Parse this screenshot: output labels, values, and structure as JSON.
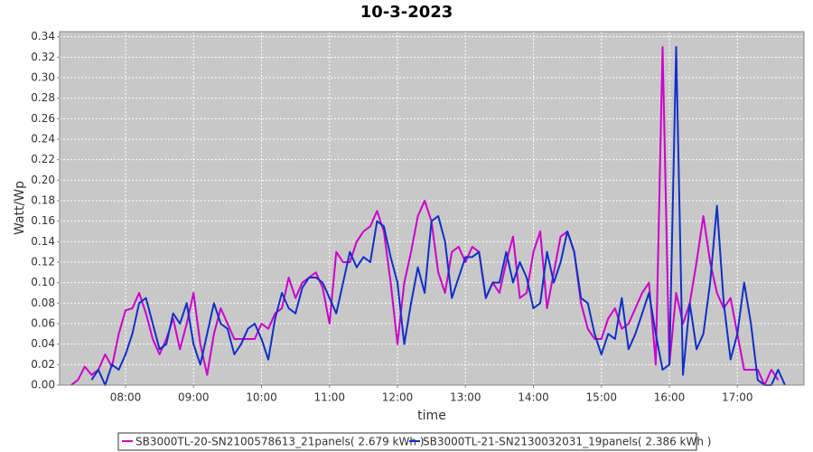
{
  "chart_data": {
    "type": "line",
    "title": "10-3-2023",
    "x_label": "time",
    "y_label": "Watt/Wp",
    "x": [
      7.2,
      7.3,
      7.4,
      7.5,
      7.6,
      7.7,
      7.8,
      7.9,
      8.0,
      8.1,
      8.2,
      8.3,
      8.4,
      8.5,
      8.6,
      8.7,
      8.8,
      8.9,
      9.0,
      9.1,
      9.2,
      9.3,
      9.4,
      9.5,
      9.6,
      9.7,
      9.8,
      9.9,
      10.0,
      10.1,
      10.2,
      10.3,
      10.4,
      10.5,
      10.6,
      10.7,
      10.8,
      10.9,
      11.0,
      11.1,
      11.2,
      11.3,
      11.4,
      11.5,
      11.6,
      11.7,
      11.8,
      11.9,
      12.0,
      12.1,
      12.2,
      12.3,
      12.4,
      12.5,
      12.6,
      12.7,
      12.8,
      12.9,
      13.0,
      13.1,
      13.2,
      13.3,
      13.4,
      13.5,
      13.6,
      13.7,
      13.8,
      13.9,
      14.0,
      14.1,
      14.2,
      14.3,
      14.4,
      14.5,
      14.6,
      14.7,
      14.8,
      14.9,
      15.0,
      15.1,
      15.2,
      15.3,
      15.4,
      15.5,
      15.6,
      15.7,
      15.8,
      15.9,
      16.0,
      16.1,
      16.2,
      16.3,
      16.4,
      16.5,
      16.6,
      16.7,
      16.8,
      16.9,
      17.0,
      17.1,
      17.2,
      17.3,
      17.4,
      17.5,
      17.6,
      17.7,
      17.8
    ],
    "series": [
      {
        "name": "SB3000TL-20-SN2100578613_21panels( 2.679 kWh )",
        "color": "#cc00cc",
        "values": [
          0,
          0.005,
          0.018,
          0.01,
          0.015,
          0.03,
          0.018,
          0.05,
          0.073,
          0.075,
          0.09,
          0.07,
          0.045,
          0.03,
          0.045,
          0.065,
          0.035,
          0.06,
          0.09,
          0.04,
          0.01,
          0.05,
          0.075,
          0.06,
          0.045,
          0.045,
          0.045,
          0.045,
          0.06,
          0.055,
          0.07,
          0.075,
          0.105,
          0.085,
          0.1,
          0.105,
          0.11,
          0.095,
          0.06,
          0.13,
          0.12,
          0.12,
          0.14,
          0.15,
          0.155,
          0.17,
          0.15,
          0.1,
          0.04,
          0.1,
          0.13,
          0.165,
          0.18,
          0.16,
          0.11,
          0.09,
          0.13,
          0.135,
          0.12,
          0.135,
          0.13,
          0.085,
          0.1,
          0.09,
          0.12,
          0.145,
          0.085,
          0.09,
          0.13,
          0.15,
          0.075,
          0.11,
          0.145,
          0.15,
          0.13,
          0.08,
          0.055,
          0.045,
          0.045,
          0.065,
          0.075,
          0.055,
          0.06,
          0.075,
          0.09,
          0.1,
          0.02,
          0.33,
          0.02,
          0.09,
          0.06,
          0.08,
          0.12,
          0.165,
          0.12,
          0.09,
          0.075,
          0.085,
          0.05,
          0.015,
          0.015,
          0.015,
          0,
          0.015,
          0.005,
          null,
          null
        ]
      },
      {
        "name": "SB3000TL-21-SN2130032031_19panels( 2.386 kWh )",
        "color": "#1030c8",
        "values": [
          null,
          null,
          null,
          0.005,
          0.015,
          0,
          0.02,
          0.015,
          0.03,
          0.05,
          0.08,
          0.085,
          0.06,
          0.035,
          0.04,
          0.07,
          0.06,
          0.08,
          0.04,
          0.02,
          0.05,
          0.08,
          0.06,
          0.055,
          0.03,
          0.04,
          0.055,
          0.06,
          0.045,
          0.025,
          0.065,
          0.09,
          0.075,
          0.07,
          0.095,
          0.105,
          0.105,
          0.1,
          0.085,
          0.07,
          0.1,
          0.13,
          0.115,
          0.125,
          0.12,
          0.16,
          0.155,
          0.125,
          0.1,
          0.04,
          0.08,
          0.115,
          0.09,
          0.16,
          0.165,
          0.14,
          0.085,
          0.105,
          0.125,
          0.125,
          0.13,
          0.085,
          0.1,
          0.1,
          0.13,
          0.1,
          0.12,
          0.105,
          0.075,
          0.08,
          0.13,
          0.1,
          0.12,
          0.15,
          0.13,
          0.085,
          0.08,
          0.05,
          0.03,
          0.05,
          0.045,
          0.085,
          0.035,
          0.05,
          0.07,
          0.09,
          0.05,
          0.015,
          0.02,
          0.33,
          0.01,
          0.08,
          0.035,
          0.05,
          0.1,
          0.175,
          0.08,
          0.025,
          0.05,
          0.1,
          0.06,
          0.005,
          0,
          0,
          0.015,
          0,
          null
        ]
      }
    ],
    "xlim": [
      7.03,
      17.98
    ],
    "ylim": [
      0,
      0.345
    ],
    "xticks": [
      {
        "value": 8,
        "label": "08:00"
      },
      {
        "value": 9,
        "label": "09:00"
      },
      {
        "value": 10,
        "label": "10:00"
      },
      {
        "value": 11,
        "label": "11:00"
      },
      {
        "value": 12,
        "label": "12:00"
      },
      {
        "value": 13,
        "label": "13:00"
      },
      {
        "value": 14,
        "label": "14:00"
      },
      {
        "value": 15,
        "label": "15:00"
      },
      {
        "value": 16,
        "label": "16:00"
      },
      {
        "value": 17,
        "label": "17:00"
      }
    ],
    "yticks": [
      {
        "value": 0,
        "label": "0.00"
      },
      {
        "value": 0.02,
        "label": "0.02"
      },
      {
        "value": 0.04,
        "label": "0.04"
      },
      {
        "value": 0.06,
        "label": "0.06"
      },
      {
        "value": 0.08,
        "label": "0.08"
      },
      {
        "value": 0.1,
        "label": "0.10"
      },
      {
        "value": 0.12,
        "label": "0.12"
      },
      {
        "value": 0.14,
        "label": "0.14"
      },
      {
        "value": 0.16,
        "label": "0.16"
      },
      {
        "value": 0.18,
        "label": "0.18"
      },
      {
        "value": 0.2,
        "label": "0.20"
      },
      {
        "value": 0.22,
        "label": "0.22"
      },
      {
        "value": 0.24,
        "label": "0.24"
      },
      {
        "value": 0.26,
        "label": "0.26"
      },
      {
        "value": 0.28,
        "label": "0.28"
      },
      {
        "value": 0.3,
        "label": "0.30"
      },
      {
        "value": 0.32,
        "label": "0.32"
      },
      {
        "value": 0.34,
        "label": "0.34"
      }
    ],
    "grid": true,
    "legend": "bottom"
  }
}
